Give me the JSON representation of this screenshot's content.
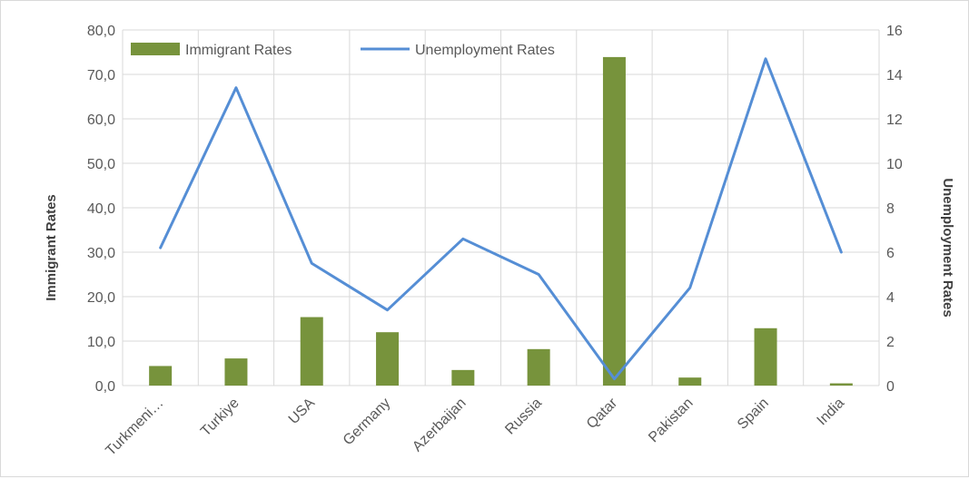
{
  "chart_data": {
    "type": "bar",
    "combo": "bar + line, dual y-axis",
    "categories": [
      "Turkmeni…",
      "Turkiye",
      "USA",
      "Germany",
      "Azerbaijan",
      "Russia",
      "Qatar",
      "Pakistan",
      "Spain",
      "India"
    ],
    "series": [
      {
        "name": "Immigrant Rates",
        "type": "bar",
        "axis": "left",
        "color": "#77933c",
        "values": [
          4.4,
          6.1,
          15.4,
          12.0,
          3.5,
          8.2,
          73.9,
          1.8,
          12.9,
          0.5
        ]
      },
      {
        "name": "Unemployment Rates",
        "type": "line",
        "axis": "right",
        "color": "#558ed5",
        "values": [
          6.2,
          13.4,
          5.5,
          3.4,
          6.6,
          5.0,
          0.3,
          4.4,
          14.7,
          6.0
        ]
      }
    ],
    "y_left": {
      "label": "Immigrant Rates",
      "lim": [
        0,
        80
      ],
      "ticks": [
        "0,0",
        "10,0",
        "20,0",
        "30,0",
        "40,0",
        "50,0",
        "60,0",
        "70,0",
        "80,0"
      ]
    },
    "y_right": {
      "label": "Unemployment Rates",
      "lim": [
        0,
        16
      ],
      "ticks": [
        "0",
        "2",
        "4",
        "6",
        "8",
        "10",
        "12",
        "14",
        "16"
      ]
    },
    "grid": true,
    "legend_position": "top",
    "title": ""
  }
}
